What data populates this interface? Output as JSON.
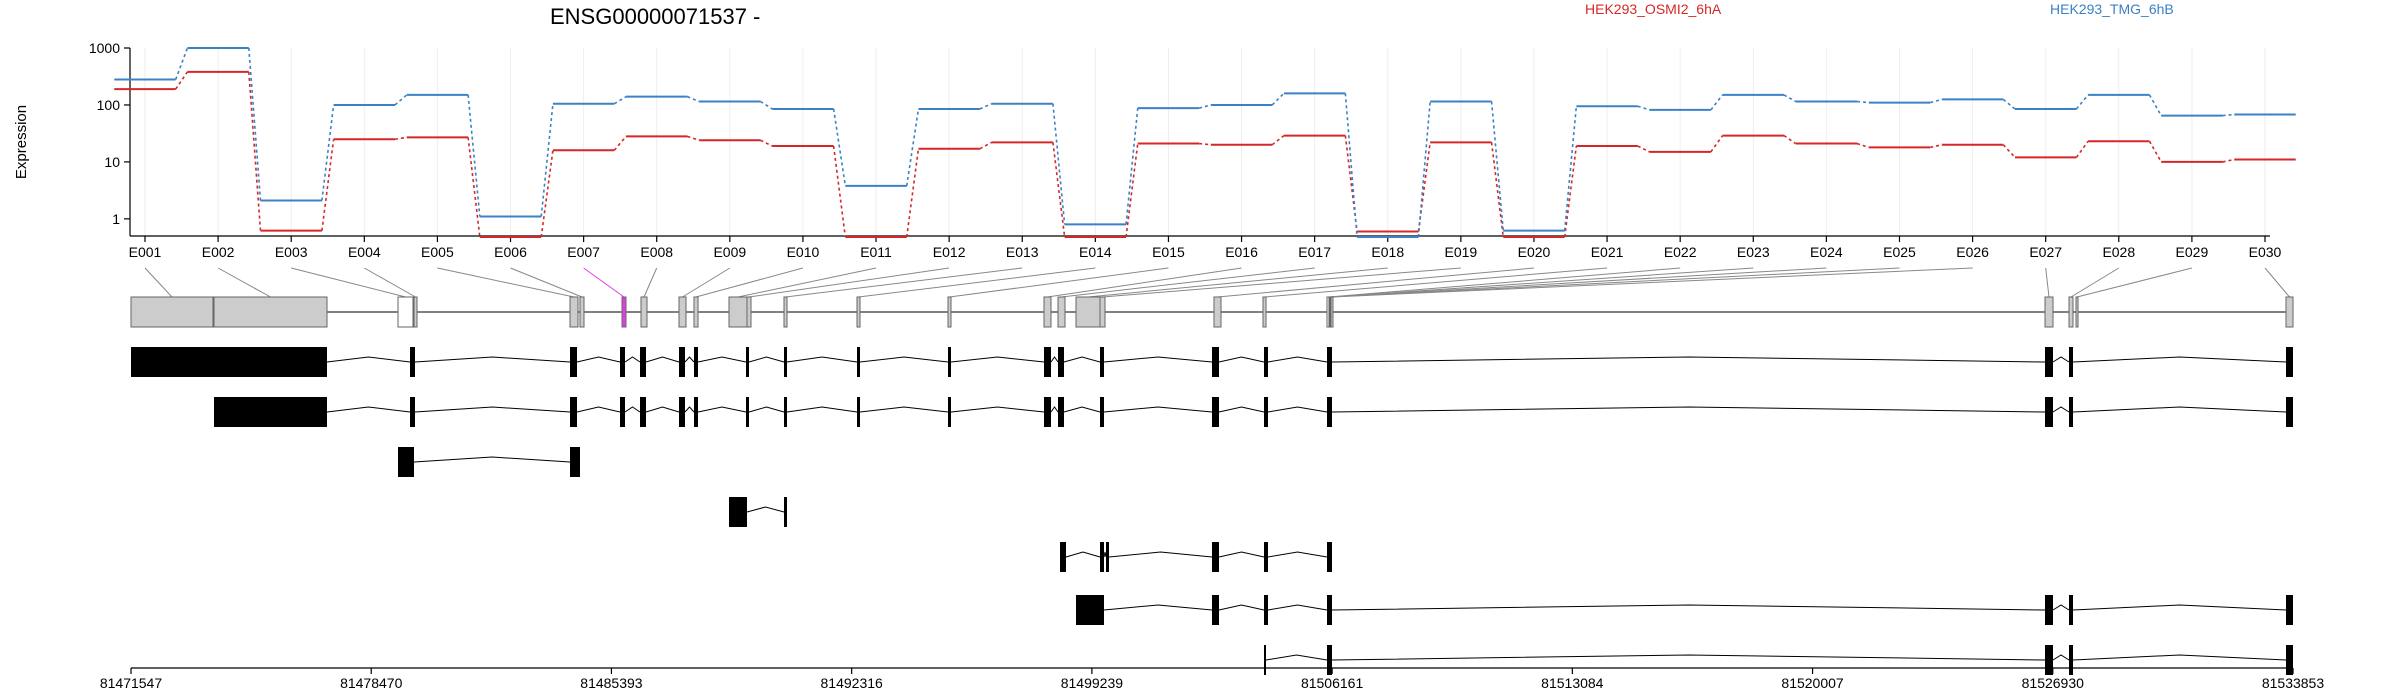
{
  "colors": {
    "series1": "#d62728",
    "series2": "#3b82c4",
    "highlight": "#e040e0",
    "exon_fill": "#cccccc",
    "black": "#000000"
  },
  "chart_data": {
    "type": "line",
    "title": "ENSG00000071537 -",
    "ylabel": "Expression",
    "yscale": "log",
    "ylim": [
      0.5,
      1000
    ],
    "yticks": [
      "1",
      "10",
      "100",
      "1000"
    ],
    "grid": true,
    "legend_placement": "top-right",
    "categories": [
      "E001",
      "E002",
      "E003",
      "E004",
      "E005",
      "E006",
      "E007",
      "E008",
      "E009",
      "E010",
      "E011",
      "E012",
      "E013",
      "E014",
      "E015",
      "E016",
      "E017",
      "E018",
      "E019",
      "E020",
      "E021",
      "E022",
      "E023",
      "E024",
      "E025",
      "E026",
      "E027",
      "E028",
      "E029",
      "E030"
    ],
    "series": [
      {
        "name": "HEK293_OSMI2_6hA",
        "values": [
          190,
          380,
          0.62,
          25,
          27,
          0.48,
          16,
          28,
          24,
          19,
          0.48,
          17,
          22,
          0.48,
          21,
          20,
          29,
          0.6,
          22,
          0.48,
          19,
          15,
          29,
          21,
          18,
          20,
          12,
          23,
          10,
          11
        ]
      },
      {
        "name": "HEK293_TMG_6hB",
        "values": [
          280,
          1000,
          2.1,
          100,
          150,
          1.1,
          105,
          140,
          115,
          85,
          3.8,
          85,
          105,
          0.8,
          88,
          100,
          160,
          0.48,
          115,
          0.62,
          95,
          82,
          150,
          115,
          110,
          125,
          85,
          150,
          65,
          68
        ]
      }
    ]
  },
  "gene_model": {
    "genomic_ticks": [
      "81471547",
      "81478470",
      "81485393",
      "81492316",
      "81499239",
      "81506161",
      "81513084",
      "81520007",
      "81526930",
      "81533853"
    ],
    "highlight_exon": "E007"
  }
}
